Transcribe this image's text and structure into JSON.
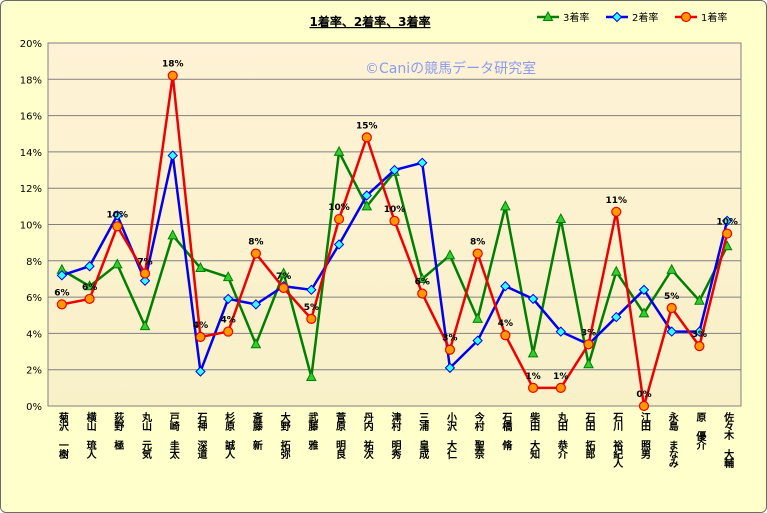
{
  "chart_data": {
    "type": "line",
    "title": "1着率、2着率、3着率",
    "watermark": "©Caniの競馬データ研究室",
    "ylim": [
      0,
      0.2
    ],
    "y_tick_labels": [
      "0%",
      "2%",
      "4%",
      "6%",
      "8%",
      "10%",
      "12%",
      "14%",
      "16%",
      "18%",
      "20%"
    ],
    "legend_position": "top-right",
    "grid": true,
    "categories": [
      "菊沢 一樹",
      "横山 琉人",
      "荻野 極",
      "丸山 元気",
      "戸崎 圭太",
      "石神 深道",
      "杉原 誠人",
      "斎藤 新",
      "大野 拓弥",
      "武藤 雅",
      "菅原 明良",
      "丹内 祐次",
      "津村 明秀",
      "三浦 皇成",
      "小沢 大仁",
      "今村 聖奈",
      "石橋 脩",
      "柴田 大知",
      "丸田 恭介",
      "石田 拓郎",
      "石川 裕紀人",
      "江田 照男",
      "永島 まなみ",
      "原 優介",
      "佐々木 大輔"
    ],
    "series": [
      {
        "name": "3着率",
        "color": "#008000",
        "marker_fill": "#33cc33",
        "marker": "triangle",
        "values": [
          0.075,
          0.066,
          0.078,
          0.044,
          0.094,
          0.076,
          0.071,
          0.034,
          0.073,
          0.016,
          0.14,
          0.11,
          0.129,
          0.07,
          0.083,
          0.048,
          0.11,
          0.029,
          0.103,
          0.023,
          0.074,
          0.051,
          0.075,
          0.058,
          0.088
        ]
      },
      {
        "name": "2着率",
        "color": "#0000ee",
        "marker_fill": "#33ffff",
        "marker": "diamond",
        "values": [
          0.072,
          0.077,
          0.105,
          0.069,
          0.138,
          0.019,
          0.059,
          0.056,
          0.066,
          0.064,
          0.089,
          0.116,
          0.13,
          0.134,
          0.021,
          0.036,
          0.066,
          0.059,
          0.041,
          0.034,
          0.049,
          0.064,
          0.041,
          0.041,
          0.102
        ]
      },
      {
        "name": "1着率",
        "color": "#ee0000",
        "marker_fill": "#ff9900",
        "marker": "circle",
        "values": [
          0.056,
          0.059,
          0.099,
          0.073,
          0.182,
          0.038,
          0.041,
          0.084,
          0.065,
          0.048,
          0.103,
          0.148,
          0.102,
          0.062,
          0.031,
          0.084,
          0.039,
          0.01,
          0.01,
          0.034,
          0.107,
          0.0,
          0.054,
          0.033,
          0.095
        ]
      }
    ],
    "data_labels_1st": [
      "6%",
      "6%",
      "10%",
      "7%",
      "18%",
      "4%",
      "4%",
      "8%",
      "7%",
      "5%",
      "10%",
      "15%",
      "10%",
      "6%",
      "3%",
      "8%",
      "4%",
      "1%",
      "1%",
      "3%",
      "11%",
      "0%",
      "5%",
      "3%",
      "10%"
    ]
  }
}
